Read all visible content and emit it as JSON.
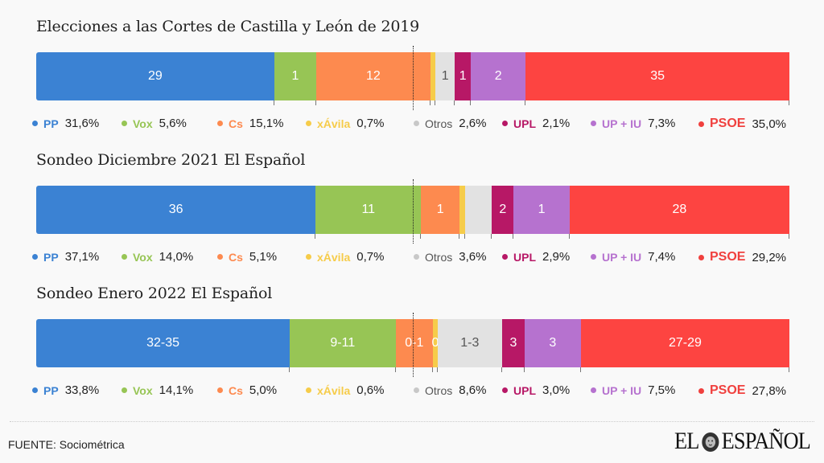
{
  "chart_data": [
    {
      "type": "bar",
      "subtype": "stacked-horizontal-100",
      "title": "Elecciones a las Cortes de Castilla y León de 2019",
      "majority_line": 0.5,
      "series": [
        {
          "name": "PP",
          "seats": "29",
          "vote_pct": 31.6,
          "vote_label": "31,6%"
        },
        {
          "name": "Vox",
          "seats": "1",
          "vote_pct": 5.6,
          "vote_label": "5,6%"
        },
        {
          "name": "Cs",
          "seats": "12",
          "vote_pct": 15.1,
          "vote_label": "15,1%"
        },
        {
          "name": "xÁvila",
          "seats": "",
          "vote_pct": 0.7,
          "vote_label": "0,7%"
        },
        {
          "name": "Otros",
          "seats": "1",
          "vote_pct": 2.6,
          "vote_label": "2,6%"
        },
        {
          "name": "UPL",
          "seats": "1",
          "vote_pct": 2.1,
          "vote_label": "2,1%"
        },
        {
          "name": "UP + IU",
          "seats": "2",
          "vote_pct": 7.3,
          "vote_label": "7,3%"
        },
        {
          "name": "PSOE",
          "seats": "35",
          "vote_pct": 35.0,
          "vote_label": "35,0%"
        }
      ]
    },
    {
      "type": "bar",
      "subtype": "stacked-horizontal-100",
      "title": "Sondeo Diciembre 2021 El Español",
      "majority_line": 0.5,
      "series": [
        {
          "name": "PP",
          "seats": "36",
          "vote_pct": 37.1,
          "vote_label": "37,1%"
        },
        {
          "name": "Vox",
          "seats": "11",
          "vote_pct": 14.0,
          "vote_label": "14,0%"
        },
        {
          "name": "Cs",
          "seats": "1",
          "vote_pct": 5.1,
          "vote_label": "5,1%"
        },
        {
          "name": "xÁvila",
          "seats": "",
          "vote_pct": 0.7,
          "vote_label": "0,7%"
        },
        {
          "name": "Otros",
          "seats": "",
          "vote_pct": 3.6,
          "vote_label": "3,6%"
        },
        {
          "name": "UPL",
          "seats": "2",
          "vote_pct": 2.9,
          "vote_label": "2,9%"
        },
        {
          "name": "UP + IU",
          "seats": "1",
          "vote_pct": 7.4,
          "vote_label": "7,4%"
        },
        {
          "name": "PSOE",
          "seats": "28",
          "vote_pct": 29.2,
          "vote_label": "29,2%"
        }
      ]
    },
    {
      "type": "bar",
      "subtype": "stacked-horizontal-100",
      "title": "Sondeo Enero 2022 El Español",
      "majority_line": 0.5,
      "series": [
        {
          "name": "PP",
          "seats": "32-35",
          "vote_pct": 33.8,
          "vote_label": "33,8%"
        },
        {
          "name": "Vox",
          "seats": "9-11",
          "vote_pct": 14.1,
          "vote_label": "14,1%"
        },
        {
          "name": "Cs",
          "seats": "0-1",
          "vote_pct": 5.0,
          "vote_label": "5,0%"
        },
        {
          "name": "xÁvila",
          "seats": "0",
          "vote_pct": 0.6,
          "vote_label": "0,6%"
        },
        {
          "name": "Otros",
          "seats": "1-3",
          "vote_pct": 8.6,
          "vote_label": "8,6%"
        },
        {
          "name": "UPL",
          "seats": "3",
          "vote_pct": 3.0,
          "vote_label": "3,0%"
        },
        {
          "name": "UP + IU",
          "seats": "3",
          "vote_pct": 7.5,
          "vote_label": "7,5%"
        },
        {
          "name": "PSOE",
          "seats": "27-29",
          "vote_pct": 27.8,
          "vote_label": "27,8%"
        }
      ]
    }
  ],
  "parties": {
    "PP": {
      "color": "#3b82d3",
      "label_color": "#ffffff",
      "legend_color": "#3b82d3"
    },
    "Vox": {
      "color": "#97c555",
      "label_color": "#ffffff",
      "legend_color": "#97c555"
    },
    "Cs": {
      "color": "#fd8a4f",
      "label_color": "#ffffff",
      "legend_color": "#fd8a4f"
    },
    "xÁvila": {
      "color": "#f6cc4a",
      "label_color": "#ffffff",
      "legend_color": "#f6cc4a"
    },
    "Otros": {
      "color": "#e2e2e2",
      "label_color": "#555555",
      "legend_color": "#c8c8c8"
    },
    "UPL": {
      "color": "#b71866",
      "label_color": "#ffffff",
      "legend_color": "#b71866"
    },
    "UP + IU": {
      "color": "#b672cf",
      "label_color": "#ffffff",
      "legend_color": "#b672cf"
    },
    "PSOE": {
      "color": "#fd4441",
      "label_color": "#ffffff",
      "legend_color": "#f0403e"
    }
  },
  "footer": {
    "source": "FUENTE: Sociométrica",
    "logo_left": "EL",
    "logo_right": "ESPAÑOL",
    "logo_icon": "lion-icon"
  }
}
